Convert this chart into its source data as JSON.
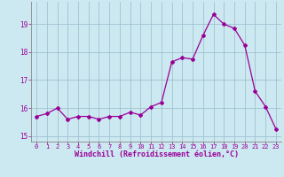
{
  "x": [
    0,
    1,
    2,
    3,
    4,
    5,
    6,
    7,
    8,
    9,
    10,
    11,
    12,
    13,
    14,
    15,
    16,
    17,
    18,
    19,
    20,
    21,
    22,
    23
  ],
  "y": [
    15.7,
    15.8,
    16.0,
    15.6,
    15.7,
    15.7,
    15.6,
    15.7,
    15.7,
    15.85,
    15.75,
    16.05,
    16.2,
    17.65,
    17.8,
    17.75,
    18.6,
    19.35,
    19.0,
    18.85,
    18.25,
    16.6,
    16.05,
    15.25
  ],
  "line_color": "#990099",
  "marker": "D",
  "marker_size": 2.0,
  "bg_color": "#cce8f0",
  "grid_color": "#99bbcc",
  "ylim": [
    14.8,
    19.8
  ],
  "xlim": [
    -0.5,
    23.5
  ],
  "yticks": [
    15,
    16,
    17,
    18,
    19
  ],
  "xticks": [
    0,
    1,
    2,
    3,
    4,
    5,
    6,
    7,
    8,
    9,
    10,
    11,
    12,
    13,
    14,
    15,
    16,
    17,
    18,
    19,
    20,
    21,
    22,
    23
  ],
  "xlabel": "Windchill (Refroidissement éolien,°C)",
  "xlabel_color": "#990099",
  "tick_color": "#990099",
  "axis_color": "#888888",
  "title": ""
}
